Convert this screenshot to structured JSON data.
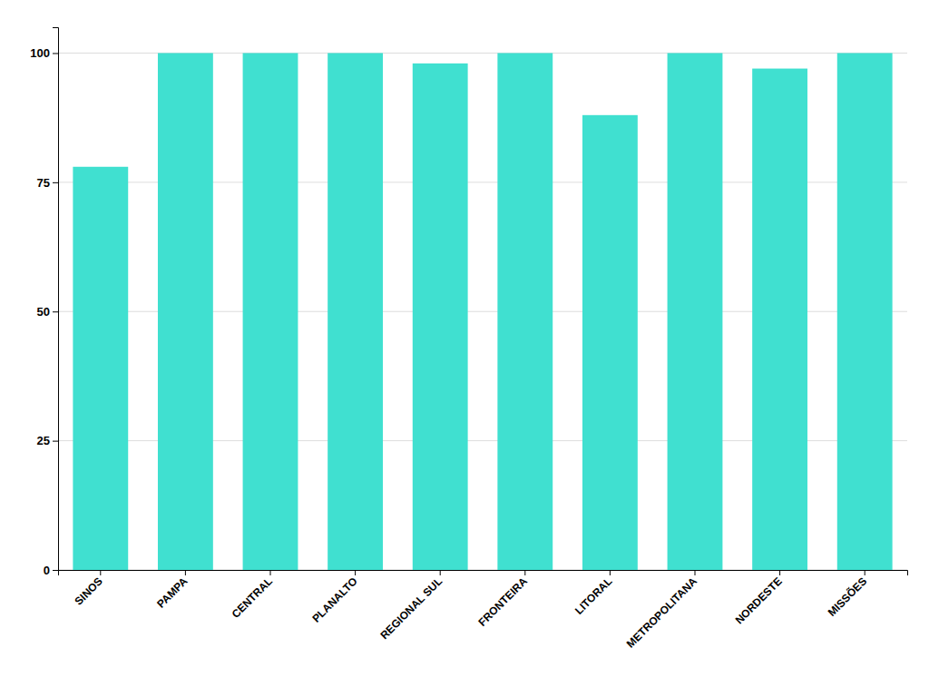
{
  "chart_data": {
    "type": "bar",
    "categories": [
      "SINOS",
      "PAMPA",
      "CENTRAL",
      "PLANALTO",
      "REGIONAL SUL",
      "FRONTEIRA",
      "LITORAL",
      "METROPOLITANA",
      "NORDESTE",
      "MISSÕES"
    ],
    "values": [
      78,
      100,
      100,
      100,
      98,
      100,
      88,
      100,
      97,
      100
    ],
    "color": "#40E0D0",
    "ylim": [
      0,
      105
    ],
    "yticks": [
      0,
      25,
      50,
      75,
      100
    ],
    "grid": true
  }
}
